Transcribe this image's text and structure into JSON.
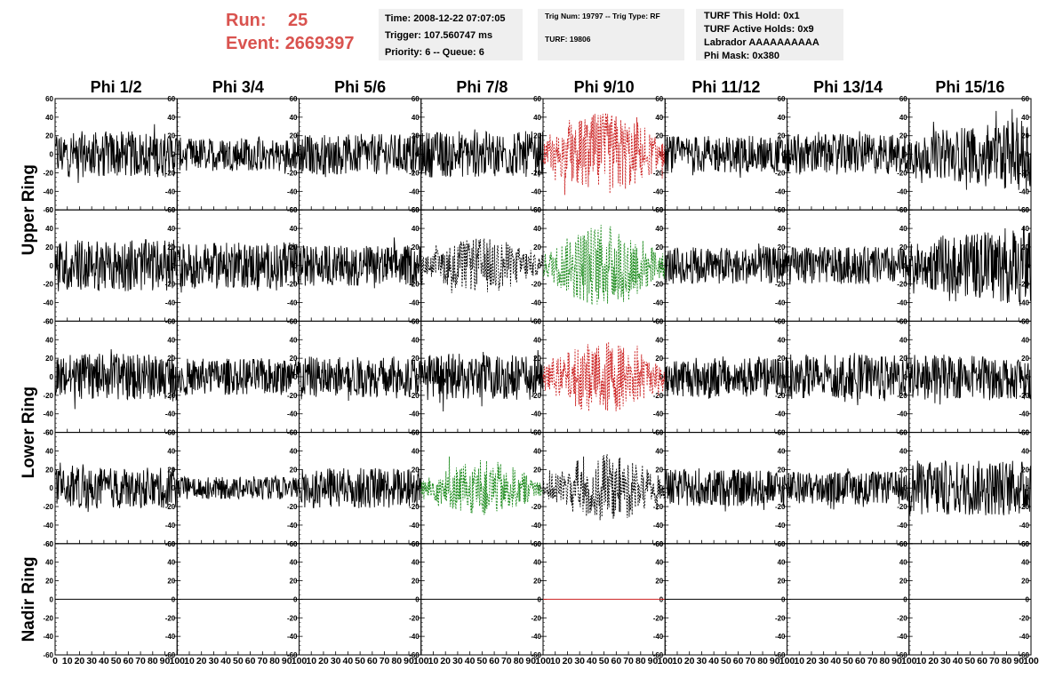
{
  "header": {
    "run_label": "Run:",
    "run_value": "25",
    "event_label": "Event:",
    "event_value": "2669397",
    "time_box": [
      "Time: 2008-12-22 07:07:05",
      "Trigger: 107.560747 ms",
      "Priority: 6 -- Queue: 6"
    ],
    "trig_box": [
      "Trig Num: 19797 -- Trig Type: RF",
      "TURF: 19806"
    ],
    "turf_box": [
      "TURF This Hold: 0x1",
      "TURF Active Holds: 0x9",
      "Labrador AAAAAAAAAA",
      "Phi Mask: 0x380"
    ]
  },
  "colors": {
    "header_text": "#d9534f",
    "info_bg": "#efefef",
    "trace_default": "#000000",
    "trace_red": "#cc2222",
    "trace_green": "#1e8c1e"
  },
  "chart_data": {
    "type": "line",
    "columns": [
      "Phi 1/2",
      "Phi 3/4",
      "Phi 5/6",
      "Phi 7/8",
      "Phi 9/10",
      "Phi 11/12",
      "Phi 13/14",
      "Phi 15/16"
    ],
    "rows": [
      "Upper Ring",
      "Upper Ring",
      "Lower Ring",
      "Lower Ring",
      "Nadir Ring"
    ],
    "row_titles": [
      "Upper Ring",
      "Lower Ring",
      "Nadir Ring"
    ],
    "ylim": [
      -60,
      60
    ],
    "yticks": [
      -60,
      -40,
      -20,
      0,
      20,
      40,
      60
    ],
    "xlim": [
      0,
      100
    ],
    "xticks": [
      0,
      10,
      20,
      30,
      40,
      50,
      60,
      70,
      80,
      90,
      100
    ],
    "approx_samples_per_trace": 260,
    "traces": [
      [
        "solid",
        "solid",
        "solid",
        "solid",
        "dotted-red",
        "solid",
        "solid",
        "solid"
      ],
      [
        "solid",
        "solid",
        "solid",
        "dotted-black",
        "dotted-green",
        "solid",
        "solid",
        "solid"
      ],
      [
        "solid",
        "solid",
        "solid",
        "solid",
        "dotted-red",
        "solid",
        "solid",
        "solid"
      ],
      [
        "solid",
        "solid",
        "solid",
        "dotted-green",
        "dotted-black",
        "solid",
        "solid",
        "solid"
      ],
      [
        "flat",
        "flat",
        "flat",
        "flat",
        "flat-red",
        "flat",
        "flat",
        "flat"
      ]
    ],
    "trace_amplitude": [
      [
        25,
        18,
        22,
        25,
        45,
        20,
        22,
        35
      ],
      [
        28,
        25,
        22,
        30,
        45,
        20,
        20,
        38
      ],
      [
        25,
        20,
        22,
        25,
        40,
        22,
        24,
        24
      ],
      [
        22,
        12,
        22,
        30,
        38,
        20,
        18,
        30
      ],
      [
        0,
        0,
        0,
        0,
        0,
        0,
        0,
        0
      ]
    ]
  }
}
